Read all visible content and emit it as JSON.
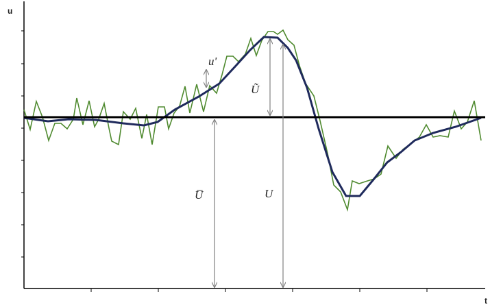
{
  "axes": {
    "y_label": "u",
    "x_label": "t"
  },
  "annotations": {
    "fluctuation": "u'",
    "periodic": "Ũ",
    "mean": "U̅",
    "total": "U"
  },
  "colors": {
    "background": "#ffffff",
    "axis": "#000000",
    "mean_line": "#000000",
    "phase_average": "#1f2a5c",
    "instantaneous": "#4f8a2f",
    "arrow": "#808080"
  },
  "series": {
    "instantaneous_t": [
      0,
      1,
      2,
      3,
      4,
      5,
      6,
      7,
      8,
      9,
      10,
      11,
      12,
      13,
      14,
      15,
      16,
      17,
      18,
      19,
      20,
      21,
      22,
      23,
      24,
      25,
      26,
      27,
      28,
      29,
      30,
      31,
      32,
      33,
      34,
      35,
      36,
      37,
      38,
      39,
      40,
      41,
      42,
      43,
      44,
      45,
      46,
      47,
      48,
      49,
      50,
      51,
      52,
      53,
      54,
      55,
      56,
      57,
      58,
      59,
      60,
      61,
      62,
      63,
      64,
      65,
      66,
      67,
      68,
      69,
      70,
      71,
      72,
      73,
      74,
      75,
      76,
      77,
      78,
      79,
      80,
      81,
      82,
      83,
      84,
      85,
      86,
      87,
      88,
      89,
      90,
      91,
      92,
      93,
      94,
      95,
      96,
      97,
      98,
      99,
      100,
      101,
      102,
      103,
      104,
      105,
      106,
      107,
      108,
      109,
      110,
      111,
      112,
      113,
      114,
      115,
      116,
      117,
      118,
      119,
      120,
      121,
      122,
      123,
      124,
      125,
      126,
      127,
      128,
      129,
      130,
      131,
      132,
      133,
      134,
      135,
      136,
      137,
      138,
      139,
      140,
      141,
      142,
      143,
      144,
      145,
      146,
      147,
      148,
      149,
      150,
      151,
      152,
      153,
      154,
      155,
      156,
      157,
      158,
      159,
      160,
      161,
      162,
      163,
      164,
      165,
      166,
      167,
      168,
      169,
      170,
      171,
      172,
      173,
      174,
      175,
      176,
      177,
      178,
      179,
      180,
      181,
      182,
      183,
      184,
      185,
      186,
      187,
      188,
      189,
      190,
      191,
      192,
      193,
      194,
      195,
      196,
      197,
      198,
      199,
      200,
      201,
      202,
      203,
      204,
      205,
      206,
      207,
      208,
      209,
      210,
      211,
      212,
      213,
      214,
      215,
      216,
      217,
      218,
      219,
      220,
      221,
      222,
      223,
      224,
      225,
      226,
      227,
      228,
      229,
      230,
      231,
      232,
      233,
      234,
      235,
      236,
      237,
      238,
      239,
      240,
      241,
      242,
      243,
      244,
      245,
      246,
      247,
      248,
      249,
      250,
      251,
      252,
      253,
      254,
      255,
      256,
      257,
      258,
      259,
      260,
      261,
      262,
      263,
      264,
      265,
      266,
      267,
      268,
      269,
      270,
      271,
      272,
      273,
      274,
      275,
      276,
      277,
      278,
      279,
      280,
      281,
      282,
      283,
      284,
      285,
      286,
      287,
      288,
      289,
      290,
      291,
      292,
      293,
      294,
      295,
      296,
      297,
      298,
      299,
      300,
      301,
      302,
      303,
      304,
      305,
      306,
      307,
      308,
      309,
      310,
      311,
      312,
      313,
      314,
      315,
      316,
      317,
      318,
      319,
      320,
      321,
      322,
      323,
      324,
      325,
      326,
      327,
      328,
      329,
      330,
      331,
      332,
      333,
      334,
      335,
      336,
      337,
      338,
      339,
      340,
      341,
      342,
      343,
      344,
      345,
      346,
      347,
      348,
      349,
      350,
      351,
      352,
      353,
      354,
      355,
      356,
      357,
      358,
      359,
      360,
      361,
      362,
      363,
      364,
      365,
      366,
      367,
      368,
      369,
      370,
      371,
      372,
      373,
      374,
      375,
      376,
      377,
      378,
      379,
      380,
      381,
      382,
      383,
      384,
      385,
      386,
      387,
      388,
      389,
      390,
      391,
      392,
      393,
      394,
      395,
      396,
      397,
      398,
      399,
      400,
      401,
      402,
      403,
      404,
      405,
      406,
      407,
      408,
      409,
      410,
      411,
      412,
      413,
      414,
      415,
      416,
      417,
      418,
      419,
      420,
      421,
      422,
      423,
      424,
      425,
      426,
      427,
      428,
      429,
      430,
      431,
      432,
      433,
      434,
      435,
      436,
      437,
      438,
      439,
      440,
      441,
      442,
      443,
      444,
      445,
      446,
      447,
      448,
      449,
      450,
      451,
      452,
      453,
      454,
      455,
      456,
      457,
      458,
      459,
      460,
      461,
      462,
      463,
      464,
      465,
      466,
      467,
      468,
      469,
      470,
      471,
      472,
      473,
      474,
      475,
      476,
      477,
      478,
      479,
      480,
      481,
      482,
      483,
      484,
      485,
      486,
      487,
      488,
      489,
      490,
      491,
      492,
      493,
      494,
      495,
      496,
      497,
      498,
      499,
      500,
      501,
      502,
      503,
      504,
      505,
      506,
      507,
      508,
      509,
      510,
      511,
      512,
      513,
      514,
      515,
      516,
      517,
      518,
      519,
      520,
      521,
      522,
      523,
      524,
      525,
      526,
      527,
      528,
      529,
      530,
      531,
      532,
      533,
      534,
      535,
      536,
      537,
      538,
      539,
      540,
      541,
      542,
      543,
      544,
      545,
      546,
      547,
      548,
      549,
      550,
      551,
      552,
      553,
      554,
      555,
      556,
      557,
      558,
      559,
      560,
      561,
      562,
      563,
      564,
      565,
      566,
      567,
      568,
      569,
      570,
      571,
      572,
      573,
      574,
      575,
      576,
      577,
      578,
      579,
      580,
      581,
      582,
      583,
      584,
      585,
      586,
      587,
      588,
      589,
      590,
      591,
      592,
      593,
      594,
      595,
      596,
      597,
      598,
      599,
      600,
      601,
      602,
      603,
      604,
      605,
      606,
      607,
      608,
      609,
      610,
      611,
      612,
      613,
      614,
      615,
      616,
      617,
      618,
      619,
      620,
      621,
      622,
      623,
      624,
      625,
      626,
      627,
      628,
      629,
      630,
      631,
      632,
      633,
      634,
      635,
      636,
      637,
      638,
      639,
      640,
      641,
      642,
      643,
      644,
      645,
      646,
      647,
      648,
      649,
      650,
      651,
      652,
      653,
      654,
      655,
      656,
      657,
      658,
      659,
      660,
      661,
      662,
      663,
      664,
      665,
      666,
      667,
      668,
      669,
      670,
      671,
      672,
      673,
      674,
      675,
      676,
      677,
      678,
      679,
      680,
      681,
      682,
      683,
      684,
      685,
      686,
      687,
      688,
      689,
      690,
      691,
      692,
      693,
      694,
      695,
      696,
      697,
      698,
      699,
      700,
      701,
      702,
      703,
      704,
      705,
      706,
      707,
      708,
      709,
      710,
      711,
      712,
      713,
      714
    ]
  }
}
